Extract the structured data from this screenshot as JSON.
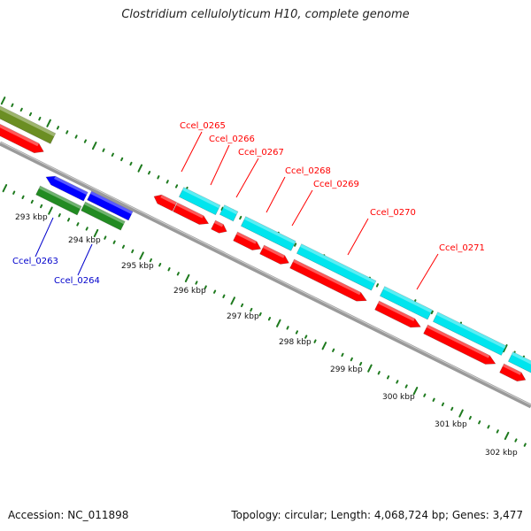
{
  "header": {
    "title": "Clostridium cellulolyticum H10, complete genome"
  },
  "footer": {
    "accession": "Accession: NC_011898",
    "topology": "Topology: circular; Length: 4,068,724 bp; Genes: 3,477"
  },
  "colors": {
    "backbone": "#8c8c8c",
    "ticks": "#1e7a1e",
    "forward_cds": "#00e5ee",
    "reverse_cds": "#ff0000",
    "forward_cds_alt": "#228b22",
    "reverse_cds_alt": "#0000ff",
    "label_red": "#ff0000",
    "label_blue": "#0000cc"
  },
  "scale_labels": [
    "293 kbp",
    "294 kbp",
    "295 kbp",
    "296 kbp",
    "297 kbp",
    "298 kbp",
    "299 kbp",
    "300 kbp",
    "301 kbp",
    "302 kbp"
  ],
  "gene_labels": {
    "red": [
      "Ccel_0265",
      "Ccel_0266",
      "Ccel_0267",
      "Ccel_0268",
      "Ccel_0269",
      "Ccel_0270",
      "Ccel_0271"
    ],
    "blue": [
      "Ccel_0263",
      "Ccel_0264"
    ]
  }
}
